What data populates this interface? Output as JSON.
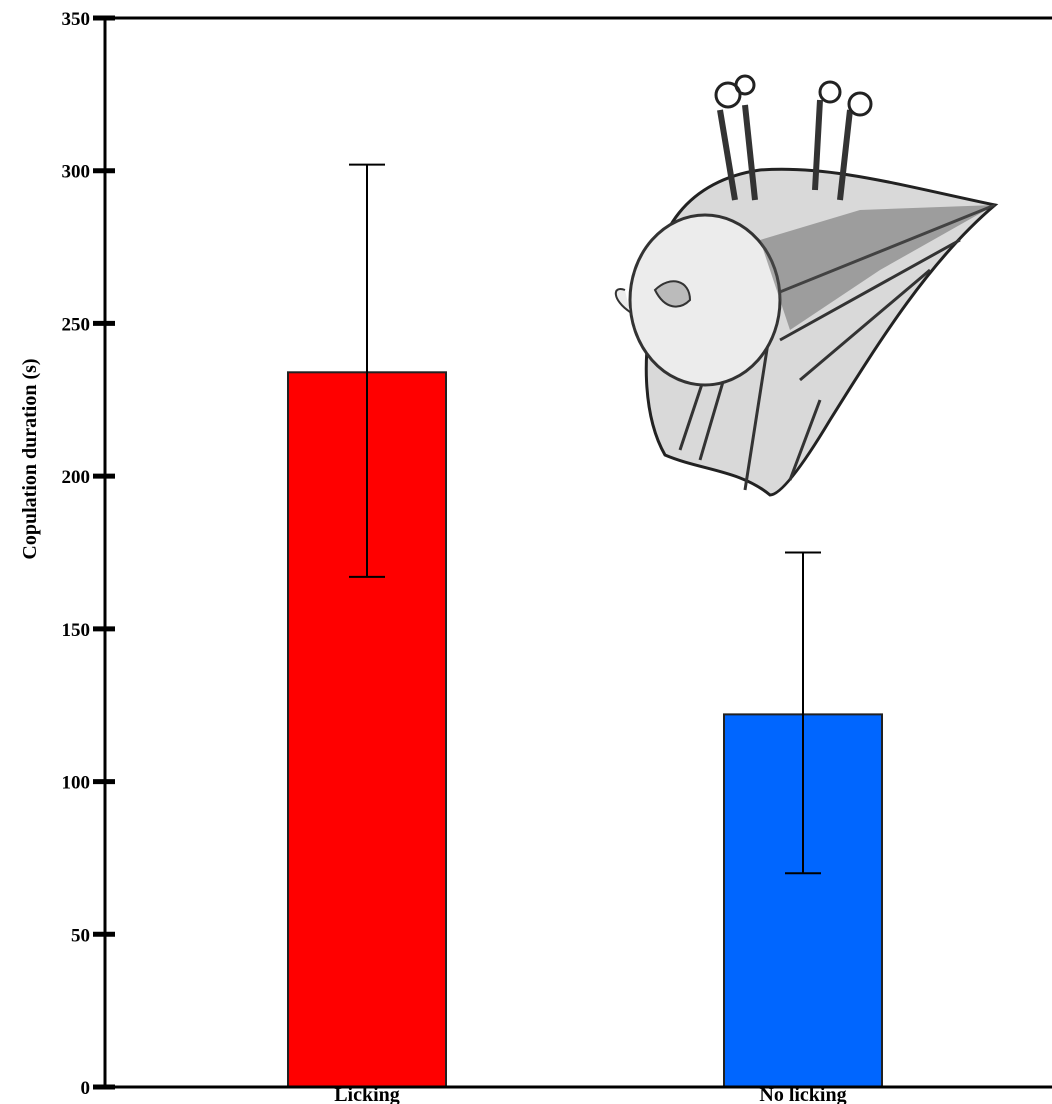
{
  "chart_data": {
    "type": "bar",
    "categories": [
      "Licking",
      "No licking"
    ],
    "values": [
      234,
      122
    ],
    "errors_upper": [
      302,
      175
    ],
    "errors_lower": [
      167,
      70
    ],
    "colors": [
      "#ff0000",
      "#0066ff"
    ],
    "title": "",
    "xlabel": "",
    "ylabel": "Copulation duration (s)",
    "ylim": [
      0,
      350
    ],
    "yticks": [
      0,
      50,
      100,
      150,
      200,
      250,
      300,
      350
    ],
    "grid": false,
    "legend": "none",
    "inset_illustration": "hanging-bat-drawing"
  }
}
